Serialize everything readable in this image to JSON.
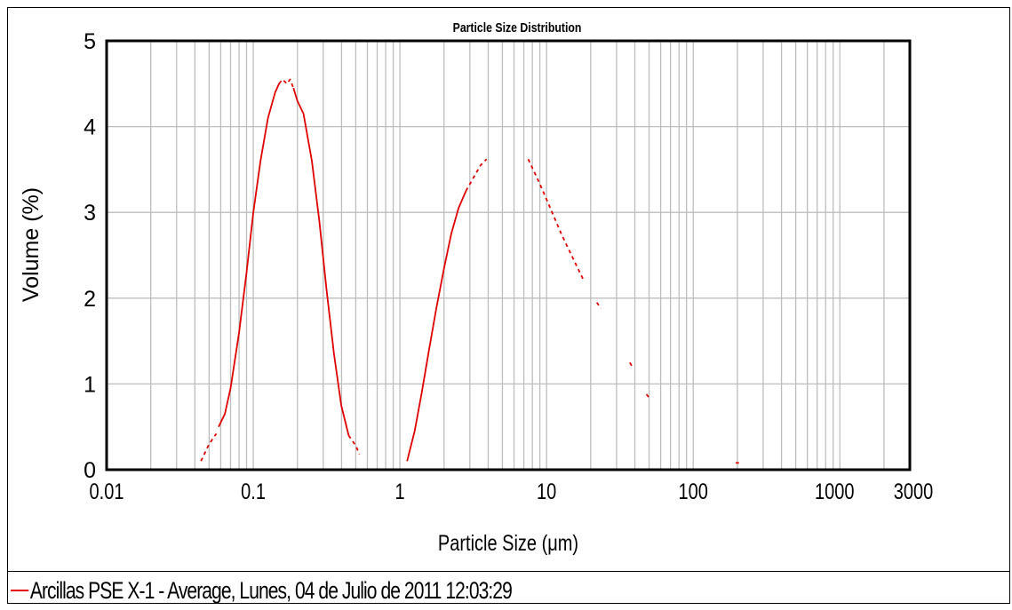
{
  "chart_data": {
    "type": "line",
    "title": "Particle Size Distribution",
    "xlabel": "Particle Size (μm)",
    "ylabel": "Volume (%)",
    "x_scale": "log",
    "xlim": [
      0.01,
      3000
    ],
    "ylim": [
      0,
      5
    ],
    "x_ticks": [
      {
        "value": 0.01,
        "label": "0.01"
      },
      {
        "value": 0.1,
        "label": "0.1"
      },
      {
        "value": 1,
        "label": "1"
      },
      {
        "value": 10,
        "label": "10"
      },
      {
        "value": 100,
        "label": "100"
      },
      {
        "value": 1000,
        "label": "1000"
      },
      {
        "value": 3000,
        "label": "3000"
      }
    ],
    "y_ticks": [
      0,
      1,
      2,
      3,
      4,
      5
    ],
    "grid": true,
    "legend_position": "bottom",
    "series": [
      {
        "name": "Arcillas PSE X-1 - Average, Lunes, 04 de Julio de 2011 12:03:29",
        "color": "#e00000",
        "segments": [
          {
            "style": "dashed",
            "points": [
              [
                0.044,
                0.1
              ],
              [
                0.05,
                0.3
              ],
              [
                0.056,
                0.42
              ]
            ]
          },
          {
            "style": "solid",
            "points": [
              [
                0.058,
                0.5
              ],
              [
                0.064,
                0.65
              ],
              [
                0.07,
                0.95
              ],
              [
                0.08,
                1.6
              ],
              [
                0.09,
                2.3
              ],
              [
                0.1,
                3.0
              ],
              [
                0.112,
                3.6
              ],
              [
                0.126,
                4.1
              ],
              [
                0.141,
                4.4
              ],
              [
                0.15,
                4.5
              ]
            ]
          },
          {
            "style": "dashed",
            "points": [
              [
                0.15,
                4.5
              ],
              [
                0.158,
                4.55
              ],
              [
                0.17,
                4.5
              ],
              [
                0.178,
                4.55
              ],
              [
                0.188,
                4.45
              ]
            ]
          },
          {
            "style": "solid",
            "points": [
              [
                0.188,
                4.45
              ],
              [
                0.2,
                4.3
              ],
              [
                0.22,
                4.15
              ],
              [
                0.251,
                3.6
              ],
              [
                0.282,
                2.9
              ],
              [
                0.316,
                2.1
              ],
              [
                0.355,
                1.35
              ],
              [
                0.398,
                0.75
              ],
              [
                0.447,
                0.4
              ]
            ]
          },
          {
            "style": "dashed",
            "points": [
              [
                0.447,
                0.4
              ],
              [
                0.5,
                0.28
              ],
              [
                0.53,
                0.18
              ]
            ]
          },
          {
            "style": "solid",
            "points": [
              [
                1.12,
                0.1
              ],
              [
                1.26,
                0.45
              ],
              [
                1.41,
                0.9
              ],
              [
                1.58,
                1.4
              ],
              [
                1.78,
                1.9
              ],
              [
                2.0,
                2.35
              ],
              [
                2.24,
                2.75
              ],
              [
                2.51,
                3.05
              ],
              [
                2.82,
                3.25
              ]
            ]
          },
          {
            "style": "dashed",
            "points": [
              [
                2.82,
                3.25
              ],
              [
                3.16,
                3.4
              ],
              [
                3.55,
                3.55
              ],
              [
                3.9,
                3.62
              ]
            ]
          },
          {
            "style": "dashed",
            "points": [
              [
                7.5,
                3.62
              ],
              [
                8.9,
                3.35
              ],
              [
                10.0,
                3.15
              ],
              [
                12.6,
                2.75
              ],
              [
                15.8,
                2.4
              ],
              [
                18.0,
                2.2
              ]
            ]
          },
          {
            "style": "dashed",
            "points": [
              [
                22.0,
                1.95
              ],
              [
                23.5,
                1.88
              ]
            ]
          },
          {
            "style": "dashed",
            "points": [
              [
                37.0,
                1.25
              ],
              [
                39.0,
                1.18
              ]
            ]
          },
          {
            "style": "dashed",
            "points": [
              [
                48.0,
                0.88
              ],
              [
                51.0,
                0.82
              ]
            ]
          },
          {
            "style": "dashed",
            "points": [
              [
                195.0,
                0.08
              ],
              [
                205.0,
                0.08
              ]
            ]
          }
        ]
      }
    ]
  },
  "legend_text": "Arcillas PSE X-1 - Average, Lunes, 04 de Julio de 2011 12:03:29"
}
